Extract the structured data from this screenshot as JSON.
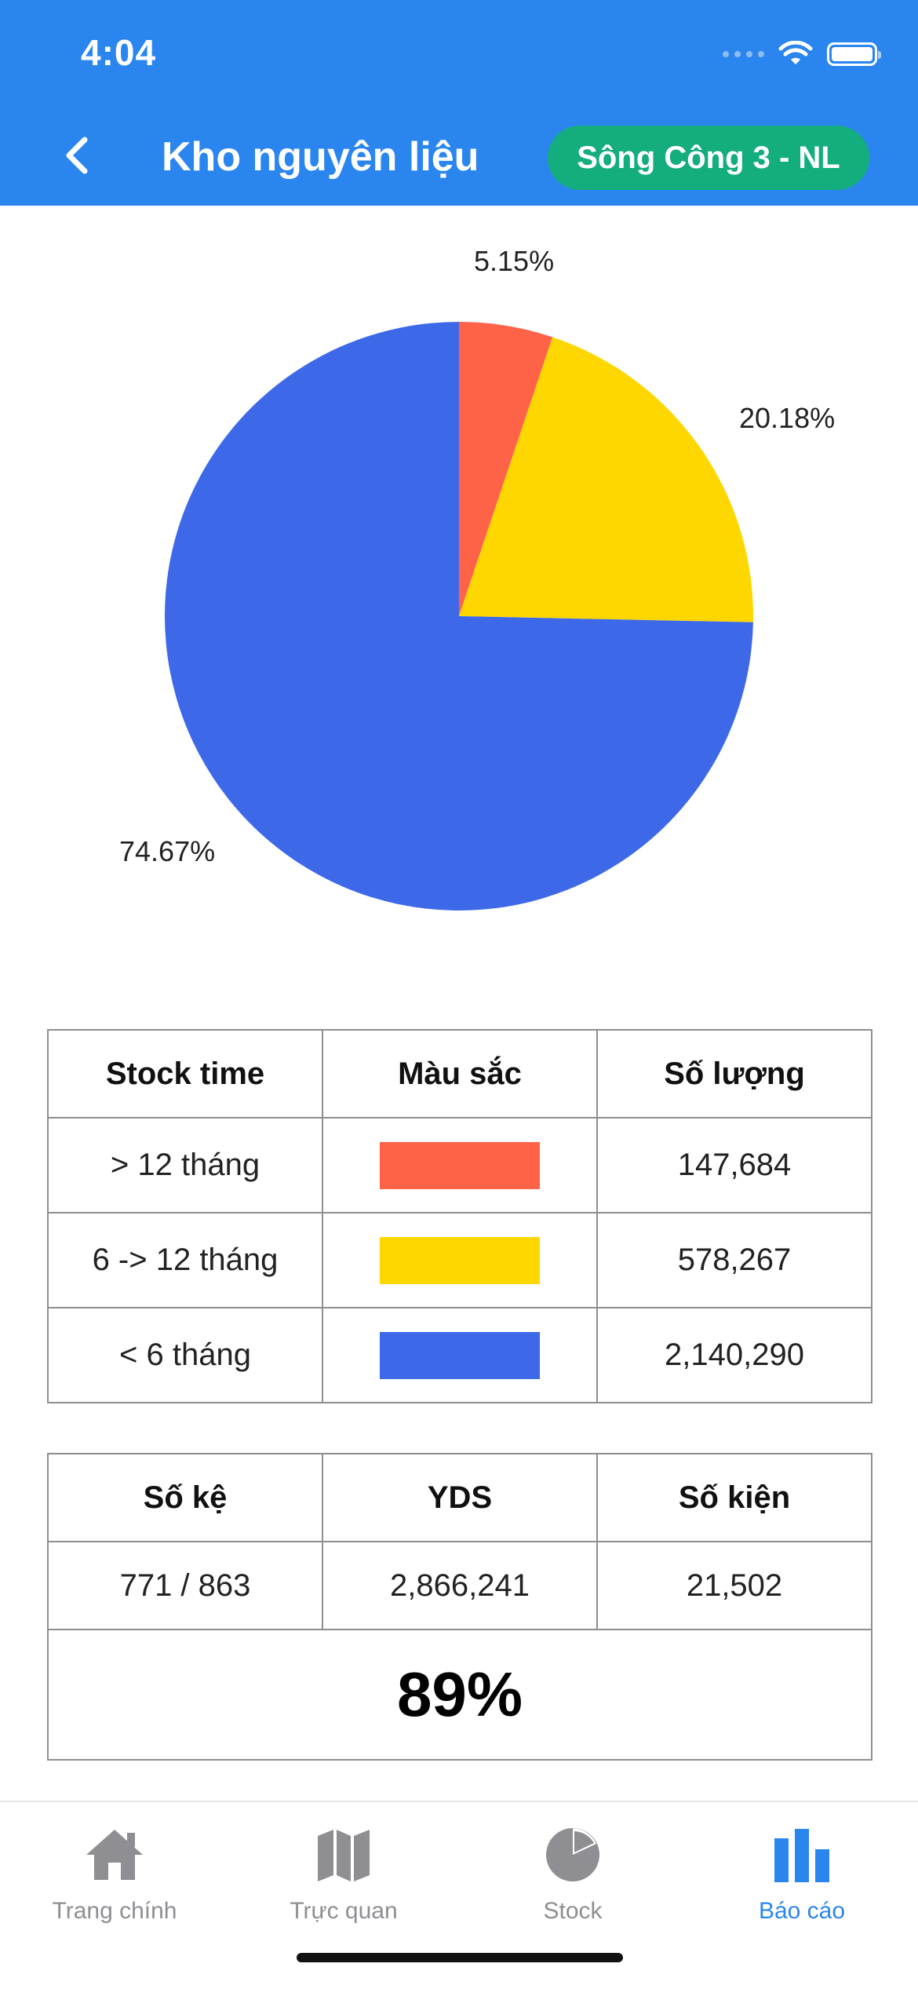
{
  "status_bar": {
    "time": "4:04"
  },
  "header": {
    "title": "Kho nguyên liệu",
    "site": "Sông Công 3 - NL"
  },
  "chart_data": {
    "type": "pie",
    "slices": [
      {
        "label": "5.15%",
        "value": 5.15,
        "color": "#ff6347"
      },
      {
        "label": "20.18%",
        "value": 20.18,
        "color": "#ffd700"
      },
      {
        "label": "74.67%",
        "value": 74.67,
        "color": "#3d69e8"
      }
    ]
  },
  "stock_table": {
    "headers": [
      "Stock time",
      "Màu sắc",
      "Số lượng"
    ],
    "rows": [
      {
        "label": "> 12 tháng",
        "color": "#ff6347",
        "qty": "147,684"
      },
      {
        "label": "6 -> 12 tháng",
        "color": "#ffd700",
        "qty": "578,267"
      },
      {
        "label": "< 6 tháng",
        "color": "#3d69e8",
        "qty": "2,140,290"
      }
    ]
  },
  "summary_table": {
    "headers": [
      "Số kệ",
      "YDS",
      "Số kiện"
    ],
    "values": [
      "771 / 863",
      "2,866,241",
      "21,502"
    ],
    "percent": "89%"
  },
  "tabbar": {
    "items": [
      {
        "label": "Trang chính",
        "icon": "home-icon"
      },
      {
        "label": "Trực quan",
        "icon": "map-icon"
      },
      {
        "label": "Stock",
        "icon": "pie-chart-icon"
      },
      {
        "label": "Báo cáo",
        "icon": "bar-chart-icon"
      }
    ],
    "active_color": "#2a86ee"
  }
}
